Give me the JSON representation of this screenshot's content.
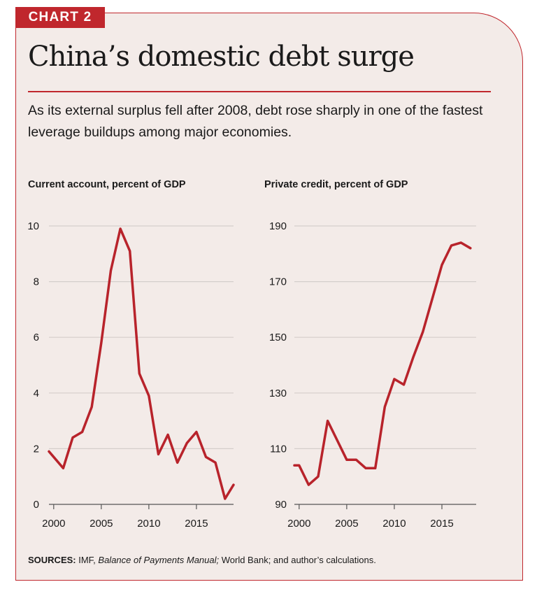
{
  "tag": "CHART 2",
  "title": "China’s domestic debt surge",
  "subtitle": "As its external surplus fell after 2008, debt rose sharply in one of the fastest leverage buildups among major economies.",
  "sources": {
    "label": "SOURCES:",
    "part1": " IMF, ",
    "italic": "Balance of Payments Manual;",
    "part2": " World Bank; and author’s calculations."
  },
  "colors": {
    "accent": "#c0272d",
    "line": "#b8232b",
    "background": "#f3ebe8"
  },
  "chart_data": [
    {
      "type": "line",
      "title": "Current account, percent of GDP",
      "xlabel": "",
      "ylabel": "",
      "xlim": [
        1999.5,
        2018.9
      ],
      "ylim": [
        0,
        10
      ],
      "yticks": [
        0,
        2,
        4,
        6,
        8,
        10
      ],
      "xticks": [
        2000,
        2005,
        2010,
        2015
      ],
      "grid": true,
      "series": [
        {
          "x": [
            1999,
            2000,
            2001,
            2002,
            2003,
            2004,
            2005,
            2006,
            2007,
            2008,
            2009,
            2010,
            2011,
            2012,
            2013,
            2014,
            2015,
            2016,
            2017,
            2018,
            2019
          ],
          "values": [
            1.9,
            1.7,
            1.3,
            2.4,
            2.6,
            3.5,
            5.8,
            8.4,
            9.9,
            9.1,
            4.7,
            3.9,
            1.8,
            2.5,
            1.5,
            2.2,
            2.6,
            1.7,
            1.5,
            0.2,
            0.7
          ]
        }
      ]
    },
    {
      "type": "line",
      "title": "Private credit, percent of GDP",
      "xlabel": "",
      "ylabel": "",
      "xlim": [
        1999.5,
        2018.6
      ],
      "ylim": [
        90,
        190
      ],
      "yticks": [
        90,
        110,
        130,
        150,
        170,
        190
      ],
      "xticks": [
        2000,
        2005,
        2010,
        2015
      ],
      "grid": true,
      "series": [
        {
          "x": [
            1999,
            2000,
            2001,
            2002,
            2003,
            2004,
            2005,
            2006,
            2007,
            2008,
            2009,
            2010,
            2011,
            2012,
            2013,
            2014,
            2015,
            2016,
            2017,
            2018
          ],
          "values": [
            104,
            104,
            97,
            100,
            120,
            113,
            106,
            106,
            103,
            103,
            125,
            135,
            133,
            143,
            152,
            164,
            176,
            183,
            184,
            182
          ]
        }
      ]
    }
  ]
}
